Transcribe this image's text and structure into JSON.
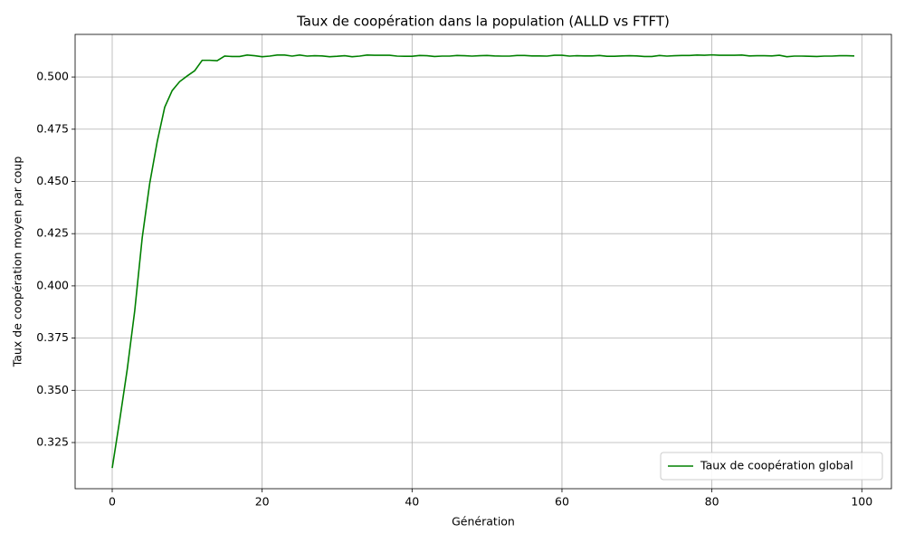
{
  "chart_data": {
    "type": "line",
    "title": "Taux de coopération dans la population (ALLD vs FTFT)",
    "x_label": "Génération",
    "y_label": "Taux de coopération moyen par coup",
    "x": [
      0,
      1,
      2,
      3,
      4,
      5,
      6,
      7,
      8,
      9,
      10,
      11,
      12,
      13,
      14,
      15,
      16,
      17,
      18,
      19,
      20,
      21,
      22,
      23,
      24,
      25,
      26,
      27,
      28,
      29,
      30,
      31,
      32,
      33,
      34,
      35,
      36,
      37,
      38,
      39,
      40,
      41,
      42,
      43,
      44,
      45,
      46,
      47,
      48,
      49,
      50,
      51,
      52,
      53,
      54,
      55,
      56,
      57,
      58,
      59,
      60,
      61,
      62,
      63,
      64,
      65,
      66,
      67,
      68,
      69,
      70,
      71,
      72,
      73,
      74,
      75,
      76,
      77,
      78,
      79,
      80,
      81,
      82,
      83,
      84,
      85,
      86,
      87,
      88,
      89,
      90,
      91,
      92,
      93,
      94,
      95,
      96,
      97,
      98,
      99
    ],
    "series": [
      {
        "name": "Taux de coopération global",
        "color": "#008000",
        "values": [
          0.3128,
          0.3358,
          0.36,
          0.388,
          0.423,
          0.449,
          0.469,
          0.4855,
          0.4935,
          0.4978,
          0.5005,
          0.503,
          0.508,
          0.508,
          0.5078,
          0.51,
          0.5098,
          0.5098,
          0.5105,
          0.5102,
          0.5097,
          0.51,
          0.5105,
          0.5105,
          0.51,
          0.5105,
          0.51,
          0.5102,
          0.5101,
          0.5097,
          0.5099,
          0.5102,
          0.5097,
          0.51,
          0.5105,
          0.5104,
          0.5104,
          0.5104,
          0.51,
          0.5099,
          0.5099,
          0.5103,
          0.5102,
          0.5098,
          0.51,
          0.51,
          0.5103,
          0.5102,
          0.51,
          0.5102,
          0.5103,
          0.5101,
          0.51,
          0.51,
          0.5103,
          0.5103,
          0.5101,
          0.5101,
          0.51,
          0.5104,
          0.5104,
          0.51,
          0.5102,
          0.5101,
          0.5101,
          0.5103,
          0.5099,
          0.5099,
          0.5101,
          0.5102,
          0.5101,
          0.5098,
          0.5098,
          0.5103,
          0.51,
          0.5102,
          0.5103,
          0.5103,
          0.5105,
          0.5104,
          0.5106,
          0.5104,
          0.5104,
          0.5104,
          0.5105,
          0.5101,
          0.5102,
          0.5102,
          0.5101,
          0.5104,
          0.5097,
          0.51,
          0.51,
          0.5099,
          0.5098,
          0.51,
          0.51,
          0.5102,
          0.5102,
          0.5101
        ]
      }
    ],
    "xlim": [
      -4.95,
      103.95
    ],
    "ylim": [
      0.3029,
      0.5204
    ],
    "xticks": [
      0,
      20,
      40,
      60,
      80,
      100
    ],
    "yticks": [
      {
        "value": 0.325,
        "label": "0.325"
      },
      {
        "value": 0.35,
        "label": "0.350"
      },
      {
        "value": 0.375,
        "label": "0.375"
      },
      {
        "value": 0.4,
        "label": "0.400"
      },
      {
        "value": 0.425,
        "label": "0.425"
      },
      {
        "value": 0.45,
        "label": "0.450"
      },
      {
        "value": 0.475,
        "label": "0.475"
      },
      {
        "value": 0.5,
        "label": "0.500"
      }
    ],
    "grid": true,
    "legend_position": "lower-right"
  }
}
